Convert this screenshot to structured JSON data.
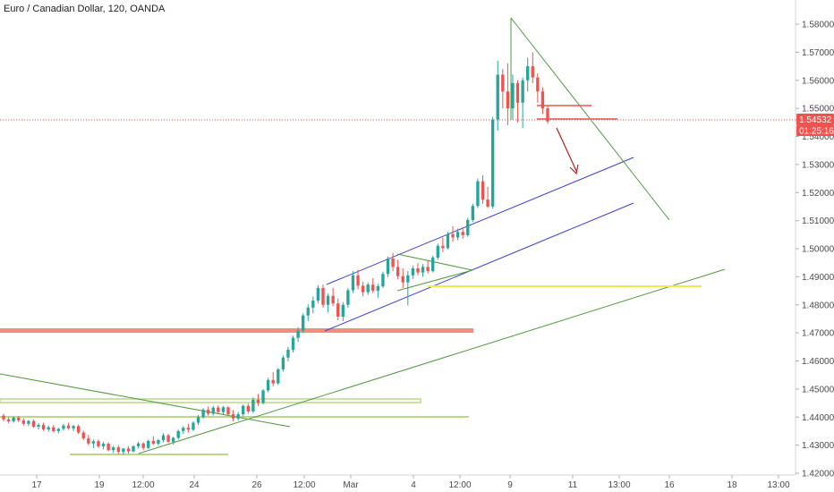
{
  "title": "Euro / Canadian Dollar, 120, OANDA",
  "colors": {
    "up": "#26a69a",
    "down": "#ef5350",
    "channel": "#3f3fd8",
    "trend": "#4f9a3d",
    "yellow": "#f5e94e",
    "zone": "#f07a6a",
    "support": "#b9d986",
    "arrow": "#b22222",
    "current": "#ef5350"
  },
  "chart_data": {
    "type": "candlestick",
    "title": "Euro / Canadian Dollar, 120, OANDA",
    "ylim": [
      1.4185,
      1.5885
    ],
    "y_ticks": [
      "1.58000",
      "1.57000",
      "1.56000",
      "1.55000",
      "1.54000",
      "1.53000",
      "1.52000",
      "1.51000",
      "1.50000",
      "1.49000",
      "1.48000",
      "1.47000",
      "1.46000",
      "1.45000",
      "1.44000",
      "1.43000",
      "1.42000"
    ],
    "x_ticks": [
      "17",
      "19",
      "12:00",
      "24",
      "26",
      "12:00",
      "Mar",
      "4",
      "12:00",
      "9",
      "11",
      "13:00",
      "16",
      "18",
      "13:00"
    ],
    "current_price": "1.54532",
    "countdown": "01:25:16",
    "candles": [
      [
        1.4405,
        1.4412,
        1.4385,
        1.4392
      ],
      [
        1.4392,
        1.44,
        1.4378,
        1.4385
      ],
      [
        1.4385,
        1.4402,
        1.438,
        1.4398
      ],
      [
        1.4398,
        1.4404,
        1.4382,
        1.4388
      ],
      [
        1.4388,
        1.4396,
        1.437,
        1.4376
      ],
      [
        1.4376,
        1.439,
        1.4368,
        1.4386
      ],
      [
        1.4386,
        1.4392,
        1.4362,
        1.4366
      ],
      [
        1.4366,
        1.4378,
        1.4356,
        1.4372
      ],
      [
        1.4372,
        1.438,
        1.435,
        1.4356
      ],
      [
        1.4356,
        1.437,
        1.4348,
        1.4364
      ],
      [
        1.4364,
        1.4372,
        1.4345,
        1.435
      ],
      [
        1.435,
        1.4362,
        1.4342,
        1.4358
      ],
      [
        1.4358,
        1.4376,
        1.4352,
        1.437
      ],
      [
        1.437,
        1.438,
        1.4355,
        1.436
      ],
      [
        1.436,
        1.4372,
        1.435,
        1.4368
      ],
      [
        1.4368,
        1.4374,
        1.434,
        1.4345
      ],
      [
        1.4345,
        1.4352,
        1.4318,
        1.4324
      ],
      [
        1.4324,
        1.4336,
        1.43,
        1.4306
      ],
      [
        1.4306,
        1.432,
        1.429,
        1.4314
      ],
      [
        1.4314,
        1.432,
        1.429,
        1.4296
      ],
      [
        1.4296,
        1.4312,
        1.4285,
        1.4305
      ],
      [
        1.4305,
        1.431,
        1.4278,
        1.4282
      ],
      [
        1.4282,
        1.4298,
        1.4272,
        1.4292
      ],
      [
        1.4292,
        1.43,
        1.4268,
        1.4276
      ],
      [
        1.4276,
        1.429,
        1.4266,
        1.4288
      ],
      [
        1.4288,
        1.4296,
        1.427,
        1.4278
      ],
      [
        1.4278,
        1.43,
        1.4274,
        1.4296
      ],
      [
        1.4296,
        1.4312,
        1.4288,
        1.4306
      ],
      [
        1.4306,
        1.431,
        1.4282,
        1.429
      ],
      [
        1.429,
        1.432,
        1.4286,
        1.4315
      ],
      [
        1.4315,
        1.4332,
        1.43,
        1.4305
      ],
      [
        1.4305,
        1.4322,
        1.4298,
        1.4318
      ],
      [
        1.4318,
        1.4342,
        1.431,
        1.4335
      ],
      [
        1.4335,
        1.434,
        1.4308,
        1.4312
      ],
      [
        1.4312,
        1.433,
        1.4302,
        1.4326
      ],
      [
        1.4326,
        1.4355,
        1.432,
        1.435
      ],
      [
        1.435,
        1.4368,
        1.434,
        1.4362
      ],
      [
        1.4362,
        1.4376,
        1.4345,
        1.4355
      ],
      [
        1.4355,
        1.4385,
        1.435,
        1.438
      ],
      [
        1.438,
        1.4408,
        1.4372,
        1.44
      ],
      [
        1.44,
        1.4432,
        1.4395,
        1.4426
      ],
      [
        1.4426,
        1.4438,
        1.4405,
        1.4412
      ],
      [
        1.4412,
        1.444,
        1.4405,
        1.4434
      ],
      [
        1.4434,
        1.4442,
        1.441,
        1.4418
      ],
      [
        1.4418,
        1.444,
        1.4408,
        1.4435
      ],
      [
        1.4435,
        1.4438,
        1.4405,
        1.441
      ],
      [
        1.441,
        1.4425,
        1.4385,
        1.4395
      ],
      [
        1.4395,
        1.4418,
        1.4388,
        1.441
      ],
      [
        1.441,
        1.4445,
        1.4402,
        1.444
      ],
      [
        1.444,
        1.4448,
        1.4412,
        1.442
      ],
      [
        1.442,
        1.447,
        1.4415,
        1.4462
      ],
      [
        1.4462,
        1.4482,
        1.444,
        1.445
      ],
      [
        1.445,
        1.45,
        1.4445,
        1.4495
      ],
      [
        1.4495,
        1.454,
        1.4488,
        1.4532
      ],
      [
        1.4532,
        1.456,
        1.451,
        1.452
      ],
      [
        1.452,
        1.4575,
        1.4515,
        1.457
      ],
      [
        1.457,
        1.462,
        1.4562,
        1.4612
      ],
      [
        1.4612,
        1.465,
        1.4598,
        1.464
      ],
      [
        1.464,
        1.469,
        1.463,
        1.4682
      ],
      [
        1.4682,
        1.472,
        1.4668,
        1.4708
      ],
      [
        1.4708,
        1.477,
        1.47,
        1.4762
      ],
      [
        1.4762,
        1.4802,
        1.4742,
        1.479
      ],
      [
        1.479,
        1.483,
        1.477,
        1.4815
      ],
      [
        1.4815,
        1.487,
        1.4805,
        1.486
      ],
      [
        1.486,
        1.4872,
        1.479,
        1.48
      ],
      [
        1.48,
        1.484,
        1.4772,
        1.4832
      ],
      [
        1.4832,
        1.486,
        1.4795,
        1.4805
      ],
      [
        1.4805,
        1.4822,
        1.4745,
        1.4758
      ],
      [
        1.4758,
        1.481,
        1.4742,
        1.48
      ],
      [
        1.48,
        1.486,
        1.479,
        1.4852
      ],
      [
        1.4852,
        1.492,
        1.4842,
        1.4905
      ],
      [
        1.4905,
        1.4925,
        1.4855,
        1.4868
      ],
      [
        1.4868,
        1.4882,
        1.483,
        1.4845
      ],
      [
        1.4845,
        1.488,
        1.4835,
        1.4872
      ],
      [
        1.4872,
        1.4895,
        1.4842,
        1.485
      ],
      [
        1.485,
        1.4875,
        1.4825,
        1.4866
      ],
      [
        1.4866,
        1.4918,
        1.486,
        1.491
      ],
      [
        1.491,
        1.4972,
        1.49,
        1.4965
      ],
      [
        1.4965,
        1.4985,
        1.492,
        1.4935
      ],
      [
        1.4935,
        1.496,
        1.489,
        1.4902
      ],
      [
        1.4902,
        1.493,
        1.486,
        1.488
      ],
      [
        1.488,
        1.492,
        1.4798,
        1.4905
      ],
      [
        1.4905,
        1.494,
        1.4892,
        1.493
      ],
      [
        1.493,
        1.4948,
        1.4905,
        1.4915
      ],
      [
        1.4915,
        1.4945,
        1.49,
        1.4935
      ],
      [
        1.4935,
        1.496,
        1.4912,
        1.492
      ],
      [
        1.492,
        1.4975,
        1.4915,
        1.4968
      ],
      [
        1.4968,
        1.5018,
        1.496,
        1.501
      ],
      [
        1.501,
        1.504,
        1.4988,
        1.5002
      ],
      [
        1.5002,
        1.506,
        1.4998,
        1.5052
      ],
      [
        1.5052,
        1.508,
        1.5025,
        1.504
      ],
      [
        1.504,
        1.5072,
        1.503,
        1.506
      ],
      [
        1.506,
        1.5075,
        1.5035,
        1.5048
      ],
      [
        1.5048,
        1.511,
        1.5042,
        1.5102
      ],
      [
        1.5102,
        1.516,
        1.5095,
        1.5152
      ],
      [
        1.5152,
        1.525,
        1.5145,
        1.524
      ],
      [
        1.524,
        1.5262,
        1.516,
        1.5175
      ],
      [
        1.5175,
        1.522,
        1.5145,
        1.515
      ],
      [
        1.515,
        1.547,
        1.5142,
        1.546
      ],
      [
        1.546,
        1.567,
        1.542,
        1.562
      ],
      [
        1.562,
        1.564,
        1.55,
        1.556
      ],
      [
        1.556,
        1.566,
        1.544,
        1.55
      ],
      [
        1.55,
        1.562,
        1.546,
        1.559
      ],
      [
        1.559,
        1.56,
        1.545,
        1.552
      ],
      [
        1.552,
        1.561,
        1.543,
        1.56
      ],
      [
        1.56,
        1.568,
        1.556,
        1.565
      ],
      [
        1.565,
        1.57,
        1.559,
        1.561
      ],
      [
        1.561,
        1.5625,
        1.552,
        1.556
      ],
      [
        1.556,
        1.5575,
        1.548,
        1.55
      ],
      [
        1.55,
        1.551,
        1.5445,
        1.5453
      ]
    ]
  }
}
